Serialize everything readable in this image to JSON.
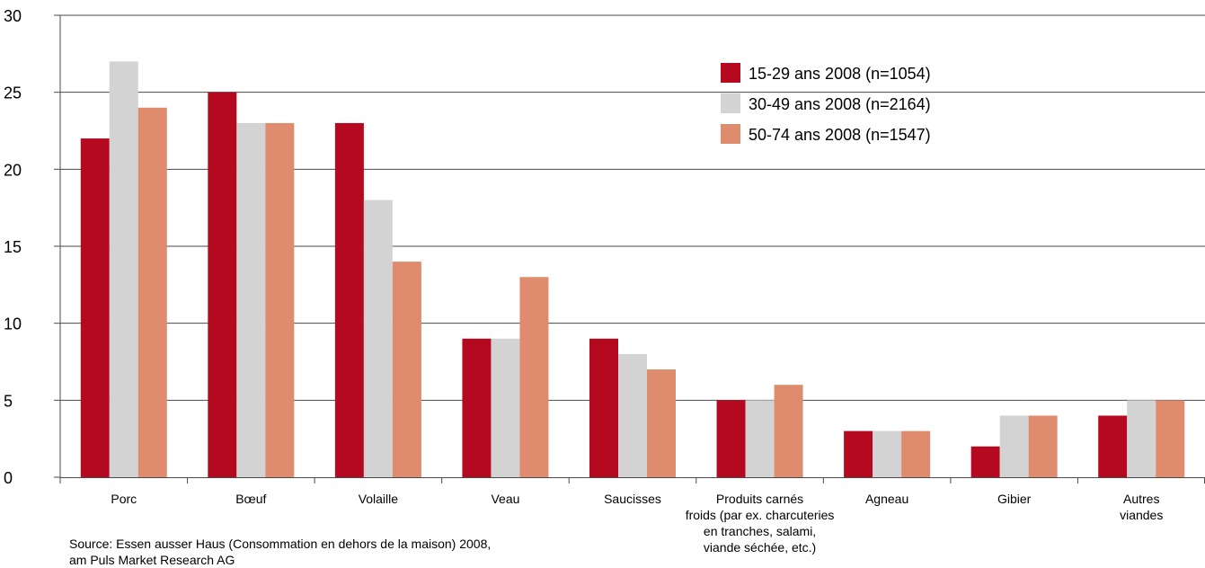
{
  "chart_data": {
    "type": "bar",
    "title": "",
    "xlabel": "",
    "ylabel": "",
    "ylim": [
      0,
      30
    ],
    "yticks": [
      0,
      5,
      10,
      15,
      20,
      25,
      30
    ],
    "grid": true,
    "legend_position": "top-right",
    "categories": [
      [
        "Porc"
      ],
      [
        "Bœuf"
      ],
      [
        "Volaille"
      ],
      [
        "Veau"
      ],
      [
        "Saucisses"
      ],
      [
        "Produits carnés",
        "froids (par ex. charcuteries",
        "en tranches, salami,",
        "viande séchée, etc.)"
      ],
      [
        "Agneau"
      ],
      [
        "Gibier"
      ],
      [
        "Autres",
        "viandes"
      ]
    ],
    "series": [
      {
        "name": "15-29 ans 2008 (n=1054)",
        "color": "#b5091f",
        "values": [
          22,
          25,
          23,
          9,
          9,
          5,
          3,
          2,
          4
        ]
      },
      {
        "name": "30-49 ans 2008 (n=2164)",
        "color": "#d3d3d3",
        "values": [
          27,
          23,
          18,
          9,
          8,
          5,
          3,
          4,
          5
        ]
      },
      {
        "name": "50-74 ans 2008 (n=1547)",
        "color": "#de8b6e",
        "values": [
          24,
          23,
          14,
          13,
          7,
          6,
          3,
          4,
          5
        ]
      }
    ]
  },
  "source": {
    "line1": "Source: Essen ausser Haus (Consommation en dehors de la maison) 2008,",
    "line2": "am Puls Market Research AG"
  }
}
